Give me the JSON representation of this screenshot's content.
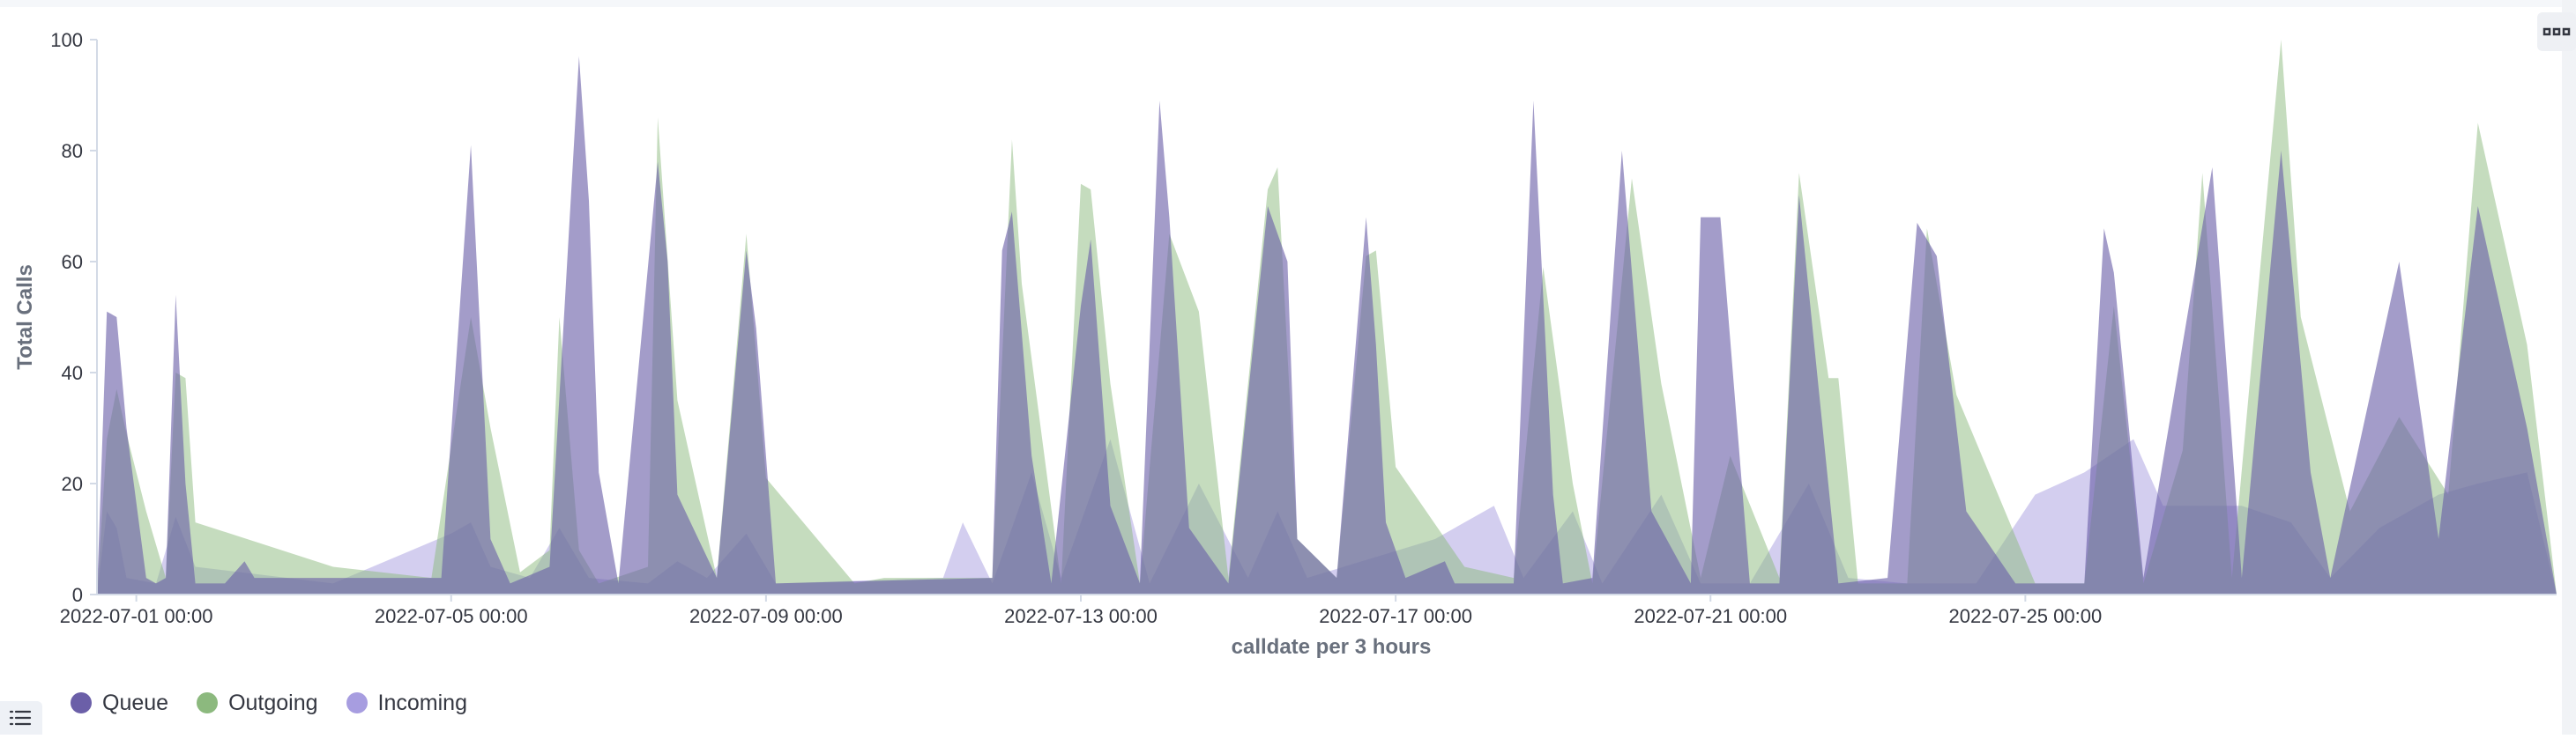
{
  "chart_data": {
    "type": "area",
    "ylabel": "Total Calls",
    "xlabel": "calldate per 3 hours",
    "ylim": [
      0,
      100
    ],
    "yticks": [
      0,
      20,
      40,
      60,
      80,
      100
    ],
    "x_start": "2022-06-30 12:00",
    "x_end": "2022-07-31 18:00",
    "xticks": [
      "2022-07-01 00:00",
      "2022-07-05 00:00",
      "2022-07-09 00:00",
      "2022-07-13 00:00",
      "2022-07-17 00:00",
      "2022-07-21 00:00",
      "2022-07-25 00:00"
    ],
    "grid": false,
    "legend_position": "bottom-left",
    "series": [
      {
        "name": "Incoming",
        "color": "#a79de0",
        "points": [
          [
            "2022-06-30 12:00",
            0
          ],
          [
            "2022-06-30 15:00",
            15
          ],
          [
            "2022-06-30 18:00",
            12
          ],
          [
            "2022-06-30 21:00",
            3
          ],
          [
            "2022-07-01 06:00",
            2
          ],
          [
            "2022-07-01 12:00",
            14
          ],
          [
            "2022-07-01 18:00",
            5
          ],
          [
            "2022-07-03 12:00",
            2
          ],
          [
            "2022-07-05 00:00",
            11
          ],
          [
            "2022-07-05 06:00",
            13
          ],
          [
            "2022-07-05 12:00",
            5
          ],
          [
            "2022-07-06 00:00",
            3
          ],
          [
            "2022-07-06 09:00",
            12
          ],
          [
            "2022-07-06 18:00",
            3
          ],
          [
            "2022-07-07 12:00",
            2
          ],
          [
            "2022-07-07 21:00",
            6
          ],
          [
            "2022-07-08 06:00",
            3
          ],
          [
            "2022-07-08 18:00",
            11
          ],
          [
            "2022-07-09 03:00",
            2
          ],
          [
            "2022-07-11 06:00",
            3
          ],
          [
            "2022-07-11 12:00",
            13
          ],
          [
            "2022-07-11 21:00",
            2
          ],
          [
            "2022-07-12 09:00",
            22
          ],
          [
            "2022-07-12 18:00",
            3
          ],
          [
            "2022-07-13 09:00",
            28
          ],
          [
            "2022-07-13 21:00",
            2
          ],
          [
            "2022-07-14 12:00",
            20
          ],
          [
            "2022-07-15 03:00",
            3
          ],
          [
            "2022-07-15 12:00",
            15
          ],
          [
            "2022-07-15 21:00",
            3
          ],
          [
            "2022-07-17 12:00",
            10
          ],
          [
            "2022-07-18 06:00",
            16
          ],
          [
            "2022-07-18 15:00",
            3
          ],
          [
            "2022-07-19 06:00",
            15
          ],
          [
            "2022-07-19 15:00",
            2
          ],
          [
            "2022-07-20 09:00",
            18
          ],
          [
            "2022-07-20 21:00",
            2
          ],
          [
            "2022-07-21 12:00",
            2
          ],
          [
            "2022-07-22 06:00",
            20
          ],
          [
            "2022-07-22 18:00",
            3
          ],
          [
            "2022-07-23 12:00",
            2
          ],
          [
            "2022-07-24 09:00",
            2
          ],
          [
            "2022-07-25 03:00",
            18
          ],
          [
            "2022-07-25 18:00",
            22
          ],
          [
            "2022-07-26 09:00",
            28
          ],
          [
            "2022-07-26 18:00",
            16
          ],
          [
            "2022-07-27 18:00",
            16
          ],
          [
            "2022-07-28 09:00",
            13
          ],
          [
            "2022-07-28 21:00",
            3
          ],
          [
            "2022-07-29 12:00",
            12
          ],
          [
            "2022-07-30 06:00",
            18
          ],
          [
            "2022-07-30 18:00",
            20
          ],
          [
            "2022-07-31 09:00",
            22
          ],
          [
            "2022-07-31 18:00",
            0
          ]
        ]
      },
      {
        "name": "Outgoing",
        "color": "#8cb97e",
        "points": [
          [
            "2022-06-30 12:00",
            0
          ],
          [
            "2022-06-30 15:00",
            28
          ],
          [
            "2022-06-30 18:00",
            37
          ],
          [
            "2022-06-30 21:00",
            29
          ],
          [
            "2022-07-01 03:00",
            15
          ],
          [
            "2022-07-01 09:00",
            3
          ],
          [
            "2022-07-01 12:00",
            40
          ],
          [
            "2022-07-01 15:00",
            39
          ],
          [
            "2022-07-01 18:00",
            13
          ],
          [
            "2022-07-03 12:00",
            5
          ],
          [
            "2022-07-04 18:00",
            3
          ],
          [
            "2022-07-05 06:00",
            50
          ],
          [
            "2022-07-05 12:00",
            30
          ],
          [
            "2022-07-05 21:00",
            4
          ],
          [
            "2022-07-06 06:00",
            8
          ],
          [
            "2022-07-06 09:00",
            50
          ],
          [
            "2022-07-06 15:00",
            8
          ],
          [
            "2022-07-06 21:00",
            2
          ],
          [
            "2022-07-07 12:00",
            5
          ],
          [
            "2022-07-07 15:00",
            86
          ],
          [
            "2022-07-07 21:00",
            35
          ],
          [
            "2022-07-08 09:00",
            3
          ],
          [
            "2022-07-08 18:00",
            65
          ],
          [
            "2022-07-09 00:00",
            21
          ],
          [
            "2022-07-10 03:00",
            2
          ],
          [
            "2022-07-10 12:00",
            3
          ],
          [
            "2022-07-11 21:00",
            3
          ],
          [
            "2022-07-12 03:00",
            82
          ],
          [
            "2022-07-12 06:00",
            56
          ],
          [
            "2022-07-12 18:00",
            2
          ],
          [
            "2022-07-13 00:00",
            74
          ],
          [
            "2022-07-13 03:00",
            73
          ],
          [
            "2022-07-13 09:00",
            38
          ],
          [
            "2022-07-13 18:00",
            2
          ],
          [
            "2022-07-14 03:00",
            65
          ],
          [
            "2022-07-14 12:00",
            51
          ],
          [
            "2022-07-14 21:00",
            3
          ],
          [
            "2022-07-15 09:00",
            73
          ],
          [
            "2022-07-15 12:00",
            77
          ],
          [
            "2022-07-15 18:00",
            10
          ],
          [
            "2022-07-16 06:00",
            3
          ],
          [
            "2022-07-16 15:00",
            61
          ],
          [
            "2022-07-16 18:00",
            62
          ],
          [
            "2022-07-17 00:00",
            23
          ],
          [
            "2022-07-17 21:00",
            5
          ],
          [
            "2022-07-18 12:00",
            3
          ],
          [
            "2022-07-18 21:00",
            59
          ],
          [
            "2022-07-19 06:00",
            20
          ],
          [
            "2022-07-19 12:00",
            2
          ],
          [
            "2022-07-20 00:00",
            75
          ],
          [
            "2022-07-20 09:00",
            38
          ],
          [
            "2022-07-20 21:00",
            3
          ],
          [
            "2022-07-21 06:00",
            25
          ],
          [
            "2022-07-21 21:00",
            3
          ],
          [
            "2022-07-22 03:00",
            76
          ],
          [
            "2022-07-22 12:00",
            39
          ],
          [
            "2022-07-22 15:00",
            39
          ],
          [
            "2022-07-22 21:00",
            2
          ],
          [
            "2022-07-23 12:00",
            2
          ],
          [
            "2022-07-23 18:00",
            66
          ],
          [
            "2022-07-24 03:00",
            36
          ],
          [
            "2022-07-25 03:00",
            2
          ],
          [
            "2022-07-25 18:00",
            2
          ],
          [
            "2022-07-26 03:00",
            52
          ],
          [
            "2022-07-26 12:00",
            2
          ],
          [
            "2022-07-27 00:00",
            26
          ],
          [
            "2022-07-27 06:00",
            76
          ],
          [
            "2022-07-27 15:00",
            3
          ],
          [
            "2022-07-28 06:00",
            100
          ],
          [
            "2022-07-28 12:00",
            50
          ],
          [
            "2022-07-29 03:00",
            15
          ],
          [
            "2022-07-29 18:00",
            32
          ],
          [
            "2022-07-30 09:00",
            18
          ],
          [
            "2022-07-30 18:00",
            85
          ],
          [
            "2022-07-31 09:00",
            45
          ],
          [
            "2022-07-31 18:00",
            0
          ]
        ]
      },
      {
        "name": "Queue",
        "color": "#6b5fa8",
        "points": [
          [
            "2022-06-30 12:00",
            0
          ],
          [
            "2022-06-30 15:00",
            51
          ],
          [
            "2022-06-30 18:00",
            50
          ],
          [
            "2022-06-30 21:00",
            30
          ],
          [
            "2022-07-01 03:00",
            3
          ],
          [
            "2022-07-01 06:00",
            2
          ],
          [
            "2022-07-01 09:00",
            3
          ],
          [
            "2022-07-01 12:00",
            54
          ],
          [
            "2022-07-01 15:00",
            20
          ],
          [
            "2022-07-01 18:00",
            2
          ],
          [
            "2022-07-02 03:00",
            2
          ],
          [
            "2022-07-02 09:00",
            6
          ],
          [
            "2022-07-02 12:00",
            3
          ],
          [
            "2022-07-04 21:00",
            3
          ],
          [
            "2022-07-05 06:00",
            81
          ],
          [
            "2022-07-05 12:00",
            10
          ],
          [
            "2022-07-05 18:00",
            2
          ],
          [
            "2022-07-06 06:00",
            5
          ],
          [
            "2022-07-06 15:00",
            97
          ],
          [
            "2022-07-06 18:00",
            71
          ],
          [
            "2022-07-06 21:00",
            22
          ],
          [
            "2022-07-07 03:00",
            2
          ],
          [
            "2022-07-07 15:00",
            78
          ],
          [
            "2022-07-07 18:00",
            60
          ],
          [
            "2022-07-07 21:00",
            18
          ],
          [
            "2022-07-08 09:00",
            3
          ],
          [
            "2022-07-08 18:00",
            62
          ],
          [
            "2022-07-08 21:00",
            48
          ],
          [
            "2022-07-09 03:00",
            2
          ],
          [
            "2022-07-11 21:00",
            3
          ],
          [
            "2022-07-12 00:00",
            62
          ],
          [
            "2022-07-12 03:00",
            69
          ],
          [
            "2022-07-12 09:00",
            25
          ],
          [
            "2022-07-12 15:00",
            2
          ],
          [
            "2022-07-13 00:00",
            52
          ],
          [
            "2022-07-13 03:00",
            64
          ],
          [
            "2022-07-13 09:00",
            16
          ],
          [
            "2022-07-13 18:00",
            2
          ],
          [
            "2022-07-14 00:00",
            89
          ],
          [
            "2022-07-14 03:00",
            68
          ],
          [
            "2022-07-14 09:00",
            12
          ],
          [
            "2022-07-14 21:00",
            2
          ],
          [
            "2022-07-15 09:00",
            70
          ],
          [
            "2022-07-15 15:00",
            60
          ],
          [
            "2022-07-15 18:00",
            10
          ],
          [
            "2022-07-16 06:00",
            3
          ],
          [
            "2022-07-16 15:00",
            68
          ],
          [
            "2022-07-16 18:00",
            45
          ],
          [
            "2022-07-16 21:00",
            13
          ],
          [
            "2022-07-17 03:00",
            3
          ],
          [
            "2022-07-17 15:00",
            6
          ],
          [
            "2022-07-17 18:00",
            2
          ],
          [
            "2022-07-18 12:00",
            2
          ],
          [
            "2022-07-18 18:00",
            89
          ],
          [
            "2022-07-19 00:00",
            18
          ],
          [
            "2022-07-19 03:00",
            2
          ],
          [
            "2022-07-19 12:00",
            3
          ],
          [
            "2022-07-19 21:00",
            80
          ],
          [
            "2022-07-20 06:00",
            15
          ],
          [
            "2022-07-20 18:00",
            2
          ],
          [
            "2022-07-20 21:00",
            68
          ],
          [
            "2022-07-21 03:00",
            68
          ],
          [
            "2022-07-21 12:00",
            2
          ],
          [
            "2022-07-21 21:00",
            2
          ],
          [
            "2022-07-22 03:00",
            72
          ],
          [
            "2022-07-22 15:00",
            2
          ],
          [
            "2022-07-23 06:00",
            3
          ],
          [
            "2022-07-23 15:00",
            67
          ],
          [
            "2022-07-23 21:00",
            61
          ],
          [
            "2022-07-24 06:00",
            15
          ],
          [
            "2022-07-24 21:00",
            2
          ],
          [
            "2022-07-25 18:00",
            2
          ],
          [
            "2022-07-26 00:00",
            66
          ],
          [
            "2022-07-26 03:00",
            58
          ],
          [
            "2022-07-26 12:00",
            3
          ],
          [
            "2022-07-27 09:00",
            77
          ],
          [
            "2022-07-27 18:00",
            3
          ],
          [
            "2022-07-28 06:00",
            80
          ],
          [
            "2022-07-28 15:00",
            22
          ],
          [
            "2022-07-28 21:00",
            3
          ],
          [
            "2022-07-29 18:00",
            60
          ],
          [
            "2022-07-30 06:00",
            10
          ],
          [
            "2022-07-30 18:00",
            70
          ],
          [
            "2022-07-31 09:00",
            30
          ],
          [
            "2022-07-31 18:00",
            0
          ]
        ]
      }
    ]
  },
  "legend": {
    "items": [
      {
        "label": "Queue",
        "color": "#6b5fa8"
      },
      {
        "label": "Outgoing",
        "color": "#8cb97e"
      },
      {
        "label": "Incoming",
        "color": "#a79de0"
      }
    ]
  }
}
